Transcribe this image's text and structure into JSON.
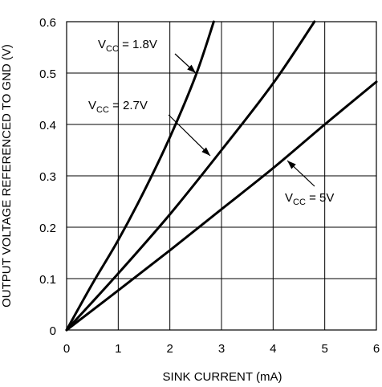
{
  "chart_data": {
    "type": "line",
    "title": "",
    "xlabel": "SINK CURRENT (mA)",
    "ylabel": "OUTPUT VOLTAGE REFERENCED TO GND (V)",
    "xlim": [
      0,
      6
    ],
    "ylim": [
      0,
      0.6
    ],
    "x_ticks": [
      0,
      1,
      2,
      3,
      4,
      5,
      6
    ],
    "y_ticks": [
      0,
      0.1,
      0.2,
      0.3,
      0.4,
      0.5,
      0.6
    ],
    "x_tick_labels": [
      "0",
      "1",
      "2",
      "3",
      "4",
      "5",
      "6"
    ],
    "y_tick_labels": [
      "0",
      "0.1",
      "0.2",
      "0.3",
      "0.4",
      "0.5",
      "0.6"
    ],
    "grid": true,
    "legend": "none",
    "series": [
      {
        "x": [
          0,
          0.5,
          1.0,
          1.5,
          2.0,
          2.5,
          2.85
        ],
        "values": [
          0,
          0.09,
          0.175,
          0.27,
          0.375,
          0.495,
          0.6
        ]
      },
      {
        "x": [
          0,
          1.0,
          2.0,
          3.0,
          4.0,
          4.8
        ],
        "values": [
          0,
          0.11,
          0.225,
          0.35,
          0.48,
          0.6
        ]
      },
      {
        "x": [
          0,
          1.0,
          2.0,
          3.0,
          4.0,
          5.0,
          6.0
        ],
        "values": [
          0,
          0.077,
          0.155,
          0.235,
          0.315,
          0.4,
          0.483
        ]
      }
    ],
    "annotations": [
      {
        "main": "V",
        "sub": "CC",
        "rest": " = 1.8V"
      },
      {
        "main": "V",
        "sub": "CC",
        "rest": " = 2.7V"
      },
      {
        "main": "V",
        "sub": "CC",
        "rest": " = 5V"
      }
    ]
  }
}
